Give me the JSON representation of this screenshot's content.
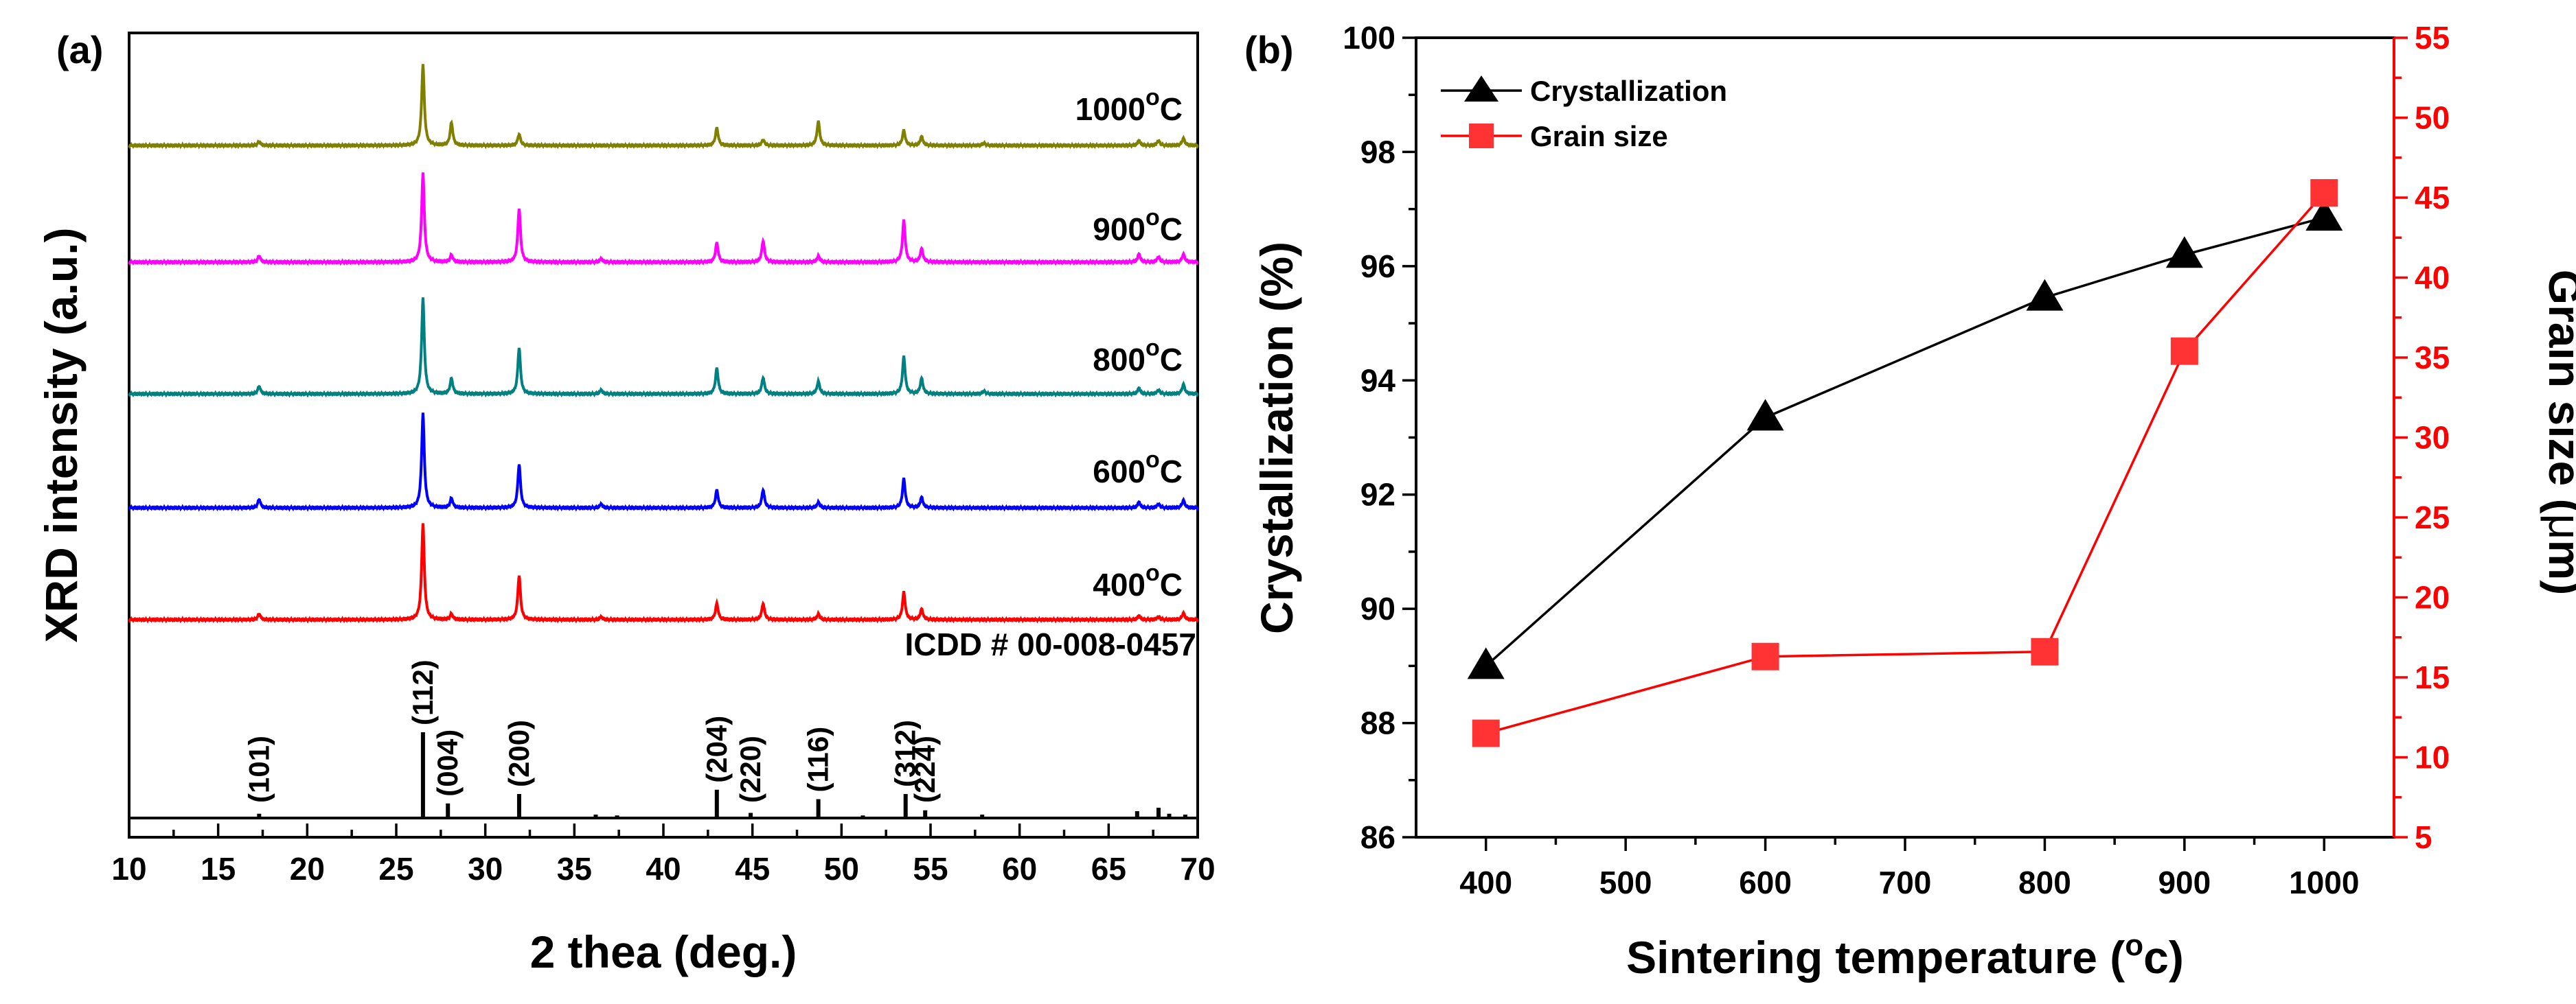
{
  "chart_data": [
    {
      "panel": "(a)",
      "type": "line",
      "title": "",
      "xlabel": "2 thea (deg.)",
      "ylabel": "XRD intensity (a.u.)",
      "xlim": [
        10,
        70
      ],
      "xticks": [
        10,
        15,
        20,
        25,
        30,
        35,
        40,
        45,
        50,
        55,
        60,
        65,
        70
      ],
      "grid": false,
      "series": [
        {
          "name": "1000°C",
          "label_main": "1000",
          "label_unit": "C",
          "color": "#808000",
          "offset": 4,
          "peaks": [
            [
              17.3,
              0.05
            ],
            [
              26.5,
              1.0
            ],
            [
              28.1,
              0.28
            ],
            [
              31.9,
              0.14
            ],
            [
              43.0,
              0.22
            ],
            [
              45.6,
              0.07
            ],
            [
              48.7,
              0.3
            ],
            [
              53.5,
              0.19
            ],
            [
              54.5,
              0.11
            ],
            [
              58.0,
              0.03
            ],
            [
              66.7,
              0.06
            ],
            [
              67.8,
              0.06
            ],
            [
              69.2,
              0.09
            ]
          ]
        },
        {
          "name": "900°C",
          "label_main": "900",
          "label_unit": "C",
          "color": "#ff00ff",
          "offset": 3,
          "peaks": [
            [
              17.3,
              0.07
            ],
            [
              26.5,
              1.0
            ],
            [
              28.1,
              0.08
            ],
            [
              31.9,
              0.6
            ],
            [
              36.5,
              0.04
            ],
            [
              43.0,
              0.22
            ],
            [
              45.6,
              0.24
            ],
            [
              48.7,
              0.07
            ],
            [
              53.5,
              0.47
            ],
            [
              54.5,
              0.15
            ],
            [
              66.7,
              0.09
            ],
            [
              67.8,
              0.06
            ],
            [
              69.2,
              0.09
            ]
          ]
        },
        {
          "name": "800°C",
          "label_main": "800",
          "label_unit": "C",
          "color": "#008080",
          "offset": 2,
          "peaks": [
            [
              17.3,
              0.08
            ],
            [
              26.5,
              1.0
            ],
            [
              28.1,
              0.16
            ],
            [
              31.9,
              0.48
            ],
            [
              36.5,
              0.04
            ],
            [
              43.0,
              0.27
            ],
            [
              45.6,
              0.17
            ],
            [
              48.7,
              0.13
            ],
            [
              53.5,
              0.39
            ],
            [
              54.5,
              0.16
            ],
            [
              58.0,
              0.03
            ],
            [
              66.7,
              0.06
            ],
            [
              67.8,
              0.04
            ],
            [
              69.2,
              0.1
            ]
          ]
        },
        {
          "name": "600°C",
          "label_main": "600",
          "label_unit": "C",
          "color": "#0000ff",
          "offset": 1,
          "peaks": [
            [
              17.3,
              0.09
            ],
            [
              26.5,
              1.0
            ],
            [
              28.1,
              0.1
            ],
            [
              31.9,
              0.46
            ],
            [
              36.5,
              0.04
            ],
            [
              43.0,
              0.19
            ],
            [
              45.6,
              0.19
            ],
            [
              48.7,
              0.06
            ],
            [
              53.5,
              0.31
            ],
            [
              54.5,
              0.11
            ],
            [
              66.7,
              0.06
            ],
            [
              67.8,
              0.04
            ],
            [
              69.2,
              0.08
            ]
          ]
        },
        {
          "name": "400°C",
          "label_main": "400",
          "label_unit": "C",
          "color": "#ff0000",
          "offset": 0,
          "peaks": [
            [
              17.3,
              0.06
            ],
            [
              26.5,
              1.0
            ],
            [
              28.1,
              0.06
            ],
            [
              31.9,
              0.46
            ],
            [
              36.5,
              0.03
            ],
            [
              43.0,
              0.17
            ],
            [
              45.6,
              0.17
            ],
            [
              48.7,
              0.06
            ],
            [
              53.5,
              0.29
            ],
            [
              54.5,
              0.11
            ],
            [
              66.7,
              0.04
            ],
            [
              67.8,
              0.03
            ],
            [
              69.2,
              0.07
            ]
          ]
        }
      ],
      "reference": {
        "label": "ICDD # 00-008-0457",
        "peaks": [
          {
            "x": 17.3,
            "h": 0.05,
            "hkl": "(101)"
          },
          {
            "x": 26.5,
            "h": 1.0,
            "hkl": "(112)"
          },
          {
            "x": 27.9,
            "h": 0.17,
            "hkl": "(004)"
          },
          {
            "x": 31.9,
            "h": 0.28,
            "hkl": "(200)"
          },
          {
            "x": 43.0,
            "h": 0.33,
            "hkl": "(204)"
          },
          {
            "x": 44.9,
            "h": 0.06,
            "hkl": "(220)"
          },
          {
            "x": 48.7,
            "h": 0.22,
            "hkl": "(116)"
          },
          {
            "x": 53.6,
            "h": 0.28,
            "hkl": "(312)"
          },
          {
            "x": 54.7,
            "h": 0.09,
            "hkl": "(224)"
          },
          {
            "x": 36.2,
            "h": 0.04,
            "hkl": ""
          },
          {
            "x": 37.4,
            "h": 0.03,
            "hkl": ""
          },
          {
            "x": 51.2,
            "h": 0.03,
            "hkl": ""
          },
          {
            "x": 57.9,
            "h": 0.04,
            "hkl": ""
          },
          {
            "x": 66.6,
            "h": 0.08,
            "hkl": ""
          },
          {
            "x": 67.8,
            "h": 0.12,
            "hkl": ""
          },
          {
            "x": 68.4,
            "h": 0.05,
            "hkl": ""
          },
          {
            "x": 69.3,
            "h": 0.04,
            "hkl": ""
          }
        ]
      }
    },
    {
      "panel": "(b)",
      "type": "line",
      "title": "",
      "xlabel": "Sintering temperature (",
      "xlabel_sup": "o",
      "xlabel_end": "c)",
      "xlim": [
        350,
        1050
      ],
      "xticks": [
        400,
        500,
        600,
        700,
        800,
        900,
        1000
      ],
      "grid": false,
      "y_left": {
        "label": "Crystallization (%)",
        "lim": [
          86,
          100
        ],
        "ticks": [
          86,
          88,
          90,
          92,
          94,
          96,
          98,
          100
        ]
      },
      "y_right": {
        "label": "Grain size (",
        "label_mu": "μ",
        "label_end": "m)",
        "lim": [
          5,
          55
        ],
        "ticks": [
          5,
          10,
          15,
          20,
          25,
          30,
          35,
          40,
          45,
          50,
          55
        ],
        "color": "#ff0000"
      },
      "legend_position": "top-left",
      "series": [
        {
          "name": "Crystallization",
          "axis": "left",
          "color": "#000000",
          "marker": "triangle",
          "x": [
            400,
            600,
            800,
            900,
            1000
          ],
          "y": [
            89.0,
            93.35,
            95.45,
            96.2,
            96.85
          ]
        },
        {
          "name": "Grain size",
          "axis": "right",
          "color": "#ff0000",
          "marker": "square",
          "x": [
            400,
            600,
            800,
            900,
            1000
          ],
          "y": [
            11.5,
            16.3,
            16.6,
            35.4,
            45.3
          ]
        }
      ]
    }
  ]
}
